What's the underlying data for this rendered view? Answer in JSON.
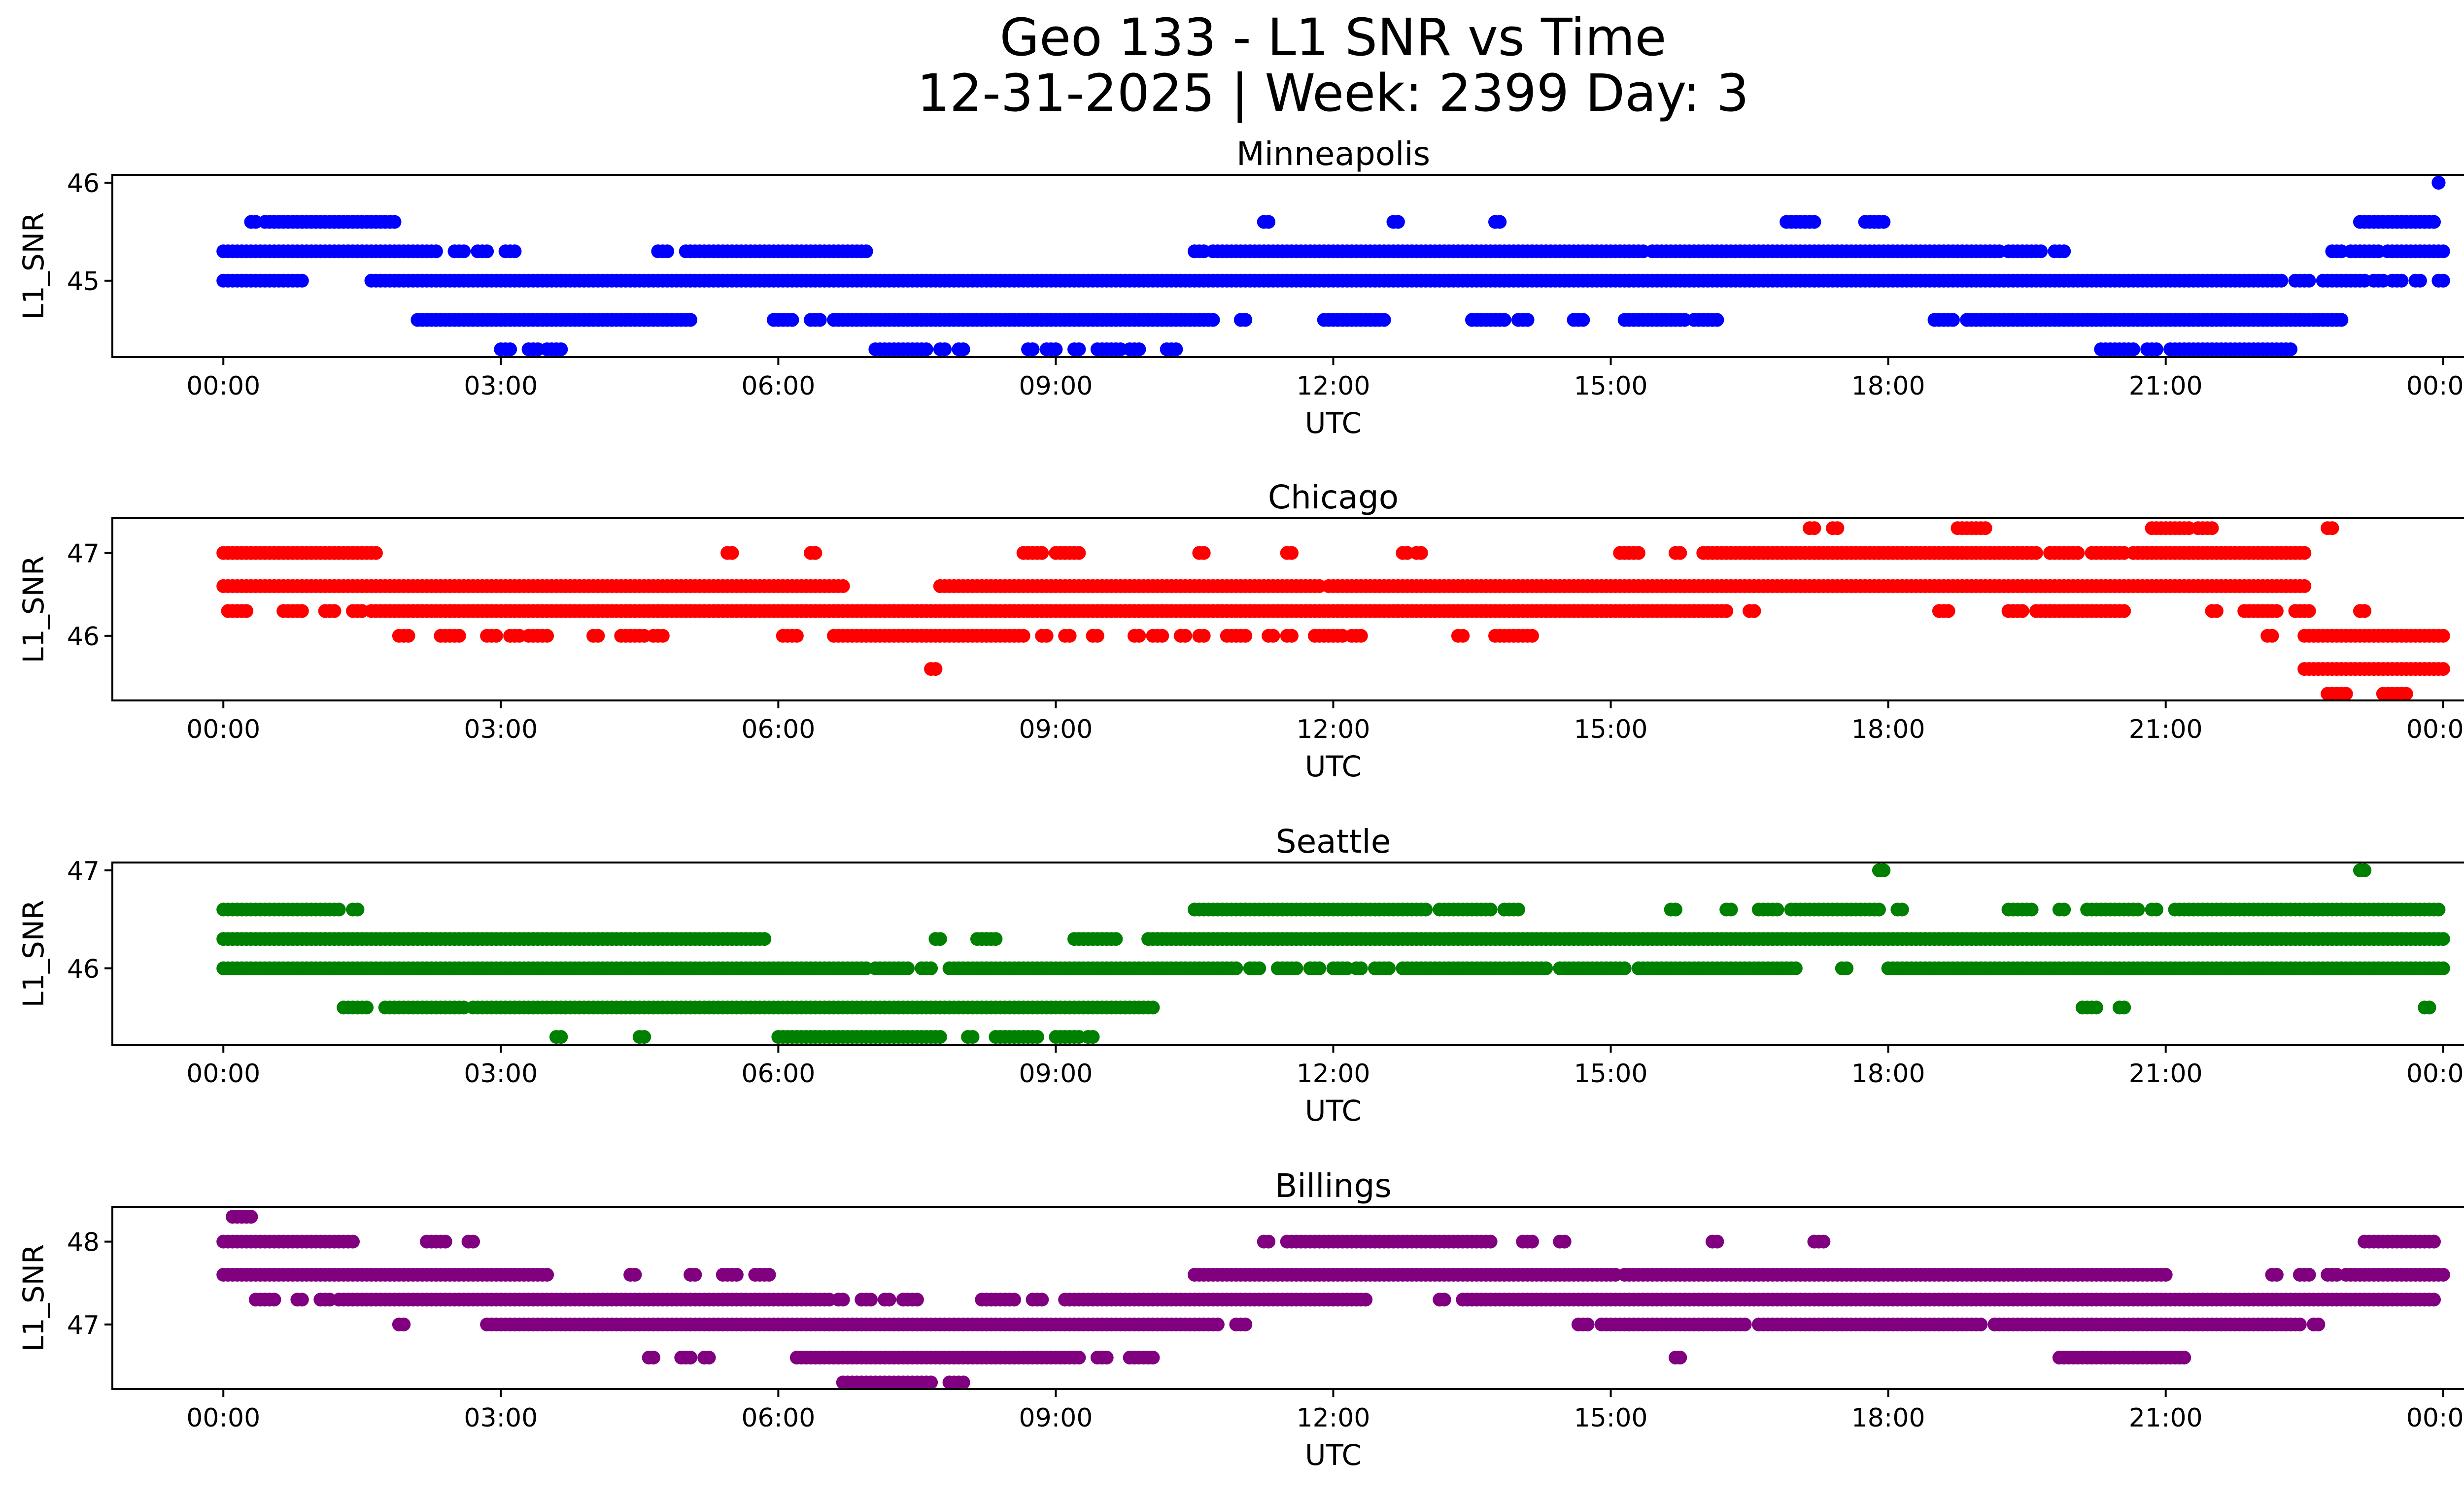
{
  "figure": {
    "title_line1": "Geo 133 - L1 SNR vs Time",
    "title_line2": "12-31-2025 | Week: 2399 Day: 3"
  },
  "chart_data": [
    {
      "type": "scatter",
      "title": "Minneapolis",
      "xlabel": "UTC",
      "ylabel": "L1_SNR",
      "color": "#0000ff",
      "x_ticks": [
        "00:00",
        "03:00",
        "06:00",
        "09:00",
        "12:00",
        "15:00",
        "18:00",
        "21:00",
        "00:00"
      ],
      "x_range_hours": [
        -1.2,
        25.2
      ],
      "y_ticks": [
        45,
        46
      ],
      "ylim": [
        44.22,
        46.08
      ],
      "grid": false,
      "levels": [
        {
          "y": 45.6,
          "segments": [
            [
              0.3,
              0.35
            ],
            [
              0.45,
              1.85
            ],
            [
              11.25,
              11.3
            ],
            [
              12.65,
              12.7
            ],
            [
              13.75,
              13.8
            ],
            [
              16.9,
              17.2
            ],
            [
              17.75,
              17.95
            ],
            [
              23.1,
              23.9
            ]
          ]
        },
        {
          "y": 45.3,
          "segments": [
            [
              0.0,
              2.3
            ],
            [
              2.5,
              2.6
            ],
            [
              2.75,
              2.85
            ],
            [
              3.05,
              3.15
            ],
            [
              4.7,
              4.8
            ],
            [
              5.0,
              6.95
            ],
            [
              10.5,
              10.6
            ],
            [
              10.7,
              15.35
            ],
            [
              15.45,
              19.2
            ],
            [
              19.3,
              19.65
            ],
            [
              19.8,
              19.9
            ],
            [
              22.8,
              22.9
            ],
            [
              23.0,
              23.3
            ],
            [
              23.4,
              24.0
            ]
          ]
        },
        {
          "y": 45.0,
          "segments": [
            [
              0.0,
              0.85
            ],
            [
              1.6,
              22.25
            ],
            [
              22.4,
              22.55
            ],
            [
              22.7,
              23.15
            ],
            [
              23.25,
              23.35
            ],
            [
              23.45,
              23.55
            ],
            [
              23.7,
              23.75
            ],
            [
              23.95,
              24.0
            ]
          ]
        },
        {
          "y": 44.6,
          "segments": [
            [
              2.1,
              5.05
            ],
            [
              5.95,
              6.15
            ],
            [
              6.35,
              6.45
            ],
            [
              6.6,
              10.7
            ],
            [
              11.0,
              11.05
            ],
            [
              11.9,
              12.55
            ],
            [
              13.5,
              13.85
            ],
            [
              14.0,
              14.1
            ],
            [
              14.6,
              14.7
            ],
            [
              15.15,
              15.8
            ],
            [
              15.9,
              16.15
            ],
            [
              18.5,
              18.7
            ],
            [
              18.85,
              22.9
            ]
          ]
        },
        {
          "y": 44.3,
          "segments": [
            [
              3.0,
              3.1
            ],
            [
              3.3,
              3.4
            ],
            [
              3.5,
              3.65
            ],
            [
              7.05,
              7.6
            ],
            [
              7.75,
              7.8
            ],
            [
              7.95,
              8.0
            ],
            [
              8.7,
              8.75
            ],
            [
              8.9,
              9.0
            ],
            [
              9.2,
              9.25
            ],
            [
              9.45,
              9.7
            ],
            [
              9.8,
              9.9
            ],
            [
              10.2,
              10.3
            ],
            [
              20.3,
              20.65
            ],
            [
              20.8,
              20.9
            ],
            [
              21.05,
              22.35
            ]
          ]
        },
        {
          "y": 46.0,
          "segments": [
            [
              23.95,
              23.95
            ]
          ]
        }
      ]
    },
    {
      "type": "scatter",
      "title": "Chicago",
      "xlabel": "UTC",
      "ylabel": "L1_SNR",
      "color": "#ff0000",
      "x_ticks": [
        "00:00",
        "03:00",
        "06:00",
        "09:00",
        "12:00",
        "15:00",
        "18:00",
        "21:00",
        "00:00"
      ],
      "x_range_hours": [
        -1.2,
        25.2
      ],
      "y_ticks": [
        46,
        47
      ],
      "ylim": [
        45.22,
        47.42
      ],
      "grid": false,
      "levels": [
        {
          "y": 47.3,
          "segments": [
            [
              17.15,
              17.2
            ],
            [
              17.4,
              17.45
            ],
            [
              18.75,
              19.05
            ],
            [
              20.85,
              21.25
            ],
            [
              21.35,
              21.5
            ],
            [
              22.75,
              22.8
            ]
          ]
        },
        {
          "y": 47.0,
          "segments": [
            [
              0.0,
              1.65
            ],
            [
              5.45,
              5.5
            ],
            [
              6.35,
              6.4
            ],
            [
              8.65,
              8.85
            ],
            [
              9.0,
              9.25
            ],
            [
              10.55,
              10.6
            ],
            [
              11.5,
              11.55
            ],
            [
              12.75,
              12.8
            ],
            [
              12.9,
              12.95
            ],
            [
              15.1,
              15.3
            ],
            [
              15.7,
              15.75
            ],
            [
              16.0,
              19.6
            ],
            [
              19.75,
              20.05
            ],
            [
              20.2,
              20.55
            ],
            [
              20.65,
              22.5
            ]
          ]
        },
        {
          "y": 46.6,
          "segments": [
            [
              0.0,
              6.7
            ],
            [
              7.75,
              11.85
            ],
            [
              11.95,
              22.5
            ]
          ]
        },
        {
          "y": 46.3,
          "segments": [
            [
              0.05,
              0.25
            ],
            [
              0.65,
              0.85
            ],
            [
              1.1,
              1.2
            ],
            [
              1.4,
              1.5
            ],
            [
              1.6,
              16.25
            ],
            [
              16.5,
              16.55
            ],
            [
              18.55,
              18.65
            ],
            [
              19.3,
              19.45
            ],
            [
              19.6,
              20.55
            ],
            [
              21.5,
              21.55
            ],
            [
              21.85,
              22.2
            ],
            [
              22.4,
              22.55
            ],
            [
              23.1,
              23.15
            ]
          ]
        },
        {
          "y": 46.0,
          "segments": [
            [
              1.9,
              2.0
            ],
            [
              2.35,
              2.55
            ],
            [
              2.85,
              2.95
            ],
            [
              3.1,
              3.2
            ],
            [
              3.3,
              3.5
            ],
            [
              4.0,
              4.05
            ],
            [
              4.3,
              4.55
            ],
            [
              4.65,
              4.75
            ],
            [
              6.05,
              6.2
            ],
            [
              6.6,
              8.65
            ],
            [
              8.85,
              8.9
            ],
            [
              9.1,
              9.15
            ],
            [
              9.4,
              9.45
            ],
            [
              9.85,
              9.9
            ],
            [
              10.05,
              10.15
            ],
            [
              10.35,
              10.4
            ],
            [
              10.55,
              10.6
            ],
            [
              10.85,
              11.05
            ],
            [
              11.3,
              11.35
            ],
            [
              11.5,
              11.55
            ],
            [
              11.8,
              12.1
            ],
            [
              12.2,
              12.3
            ],
            [
              13.35,
              13.4
            ],
            [
              13.75,
              14.15
            ],
            [
              22.1,
              22.15
            ],
            [
              22.5,
              24.0
            ]
          ]
        },
        {
          "y": 45.6,
          "segments": [
            [
              7.65,
              7.7
            ],
            [
              22.5,
              24.0
            ]
          ]
        },
        {
          "y": 45.3,
          "segments": [
            [
              22.75,
              22.95
            ],
            [
              23.35,
              23.6
            ]
          ]
        }
      ]
    },
    {
      "type": "scatter",
      "title": "Seattle",
      "xlabel": "UTC",
      "ylabel": "L1_SNR",
      "color": "#008000",
      "x_ticks": [
        "00:00",
        "03:00",
        "06:00",
        "09:00",
        "12:00",
        "15:00",
        "18:00",
        "21:00",
        "00:00"
      ],
      "x_range_hours": [
        -1.2,
        25.2
      ],
      "y_ticks": [
        46,
        47
      ],
      "ylim": [
        45.22,
        47.08
      ],
      "grid": false,
      "levels": [
        {
          "y": 47.0,
          "segments": [
            [
              17.9,
              17.95
            ],
            [
              23.1,
              23.15
            ]
          ]
        },
        {
          "y": 46.6,
          "segments": [
            [
              0.0,
              1.25
            ],
            [
              1.4,
              1.45
            ],
            [
              10.5,
              13.0
            ],
            [
              13.15,
              13.7
            ],
            [
              13.85,
              14.0
            ],
            [
              15.65,
              15.7
            ],
            [
              16.25,
              16.3
            ],
            [
              16.6,
              16.8
            ],
            [
              16.95,
              17.9
            ],
            [
              18.1,
              18.15
            ],
            [
              19.3,
              19.55
            ],
            [
              19.85,
              19.9
            ],
            [
              20.15,
              20.7
            ],
            [
              20.85,
              20.9
            ],
            [
              21.1,
              23.95
            ]
          ]
        },
        {
          "y": 46.3,
          "segments": [
            [
              0.0,
              5.85
            ],
            [
              7.7,
              7.75
            ],
            [
              8.15,
              8.35
            ],
            [
              9.2,
              9.65
            ],
            [
              10.0,
              24.0
            ]
          ]
        },
        {
          "y": 46.0,
          "segments": [
            [
              0.0,
              6.95
            ],
            [
              7.05,
              7.4
            ],
            [
              7.55,
              7.65
            ],
            [
              7.85,
              10.95
            ],
            [
              11.1,
              11.2
            ],
            [
              11.4,
              11.6
            ],
            [
              11.75,
              11.85
            ],
            [
              12.0,
              12.15
            ],
            [
              12.25,
              12.3
            ],
            [
              12.45,
              12.6
            ],
            [
              12.75,
              14.3
            ],
            [
              14.45,
              15.15
            ],
            [
              15.3,
              17.0
            ],
            [
              17.5,
              17.55
            ],
            [
              18.0,
              24.0
            ]
          ]
        },
        {
          "y": 45.6,
          "segments": [
            [
              1.3,
              1.55
            ],
            [
              1.75,
              2.6
            ],
            [
              2.7,
              10.05
            ],
            [
              20.1,
              20.25
            ],
            [
              20.5,
              20.55
            ],
            [
              23.8,
              23.85
            ]
          ]
        },
        {
          "y": 45.3,
          "segments": [
            [
              3.6,
              3.65
            ],
            [
              4.5,
              4.55
            ],
            [
              6.0,
              7.75
            ],
            [
              8.05,
              8.1
            ],
            [
              8.35,
              8.8
            ],
            [
              9.0,
              9.25
            ],
            [
              9.35,
              9.4
            ]
          ]
        }
      ]
    },
    {
      "type": "scatter",
      "title": "Billings",
      "xlabel": "UTC",
      "ylabel": "L1_SNR",
      "color": "#800080",
      "x_ticks": [
        "00:00",
        "03:00",
        "06:00",
        "09:00",
        "12:00",
        "15:00",
        "18:00",
        "21:00",
        "00:00"
      ],
      "x_range_hours": [
        -1.2,
        25.2
      ],
      "y_ticks": [
        47,
        48
      ],
      "ylim": [
        46.22,
        48.42
      ],
      "grid": false,
      "levels": [
        {
          "y": 48.3,
          "segments": [
            [
              0.1,
              0.3
            ]
          ]
        },
        {
          "y": 48.0,
          "segments": [
            [
              0.0,
              1.4
            ],
            [
              2.2,
              2.4
            ],
            [
              2.65,
              2.7
            ],
            [
              11.25,
              11.3
            ],
            [
              11.5,
              13.7
            ],
            [
              14.05,
              14.15
            ],
            [
              14.45,
              14.5
            ],
            [
              16.1,
              16.15
            ],
            [
              17.2,
              17.3
            ],
            [
              23.15,
              23.9
            ]
          ]
        },
        {
          "y": 47.6,
          "segments": [
            [
              0.0,
              3.5
            ],
            [
              4.4,
              4.45
            ],
            [
              5.05,
              5.1
            ],
            [
              5.4,
              5.55
            ],
            [
              5.75,
              5.9
            ],
            [
              10.5,
              15.05
            ],
            [
              15.15,
              21.0
            ],
            [
              22.15,
              22.2
            ],
            [
              22.45,
              22.55
            ],
            [
              22.75,
              22.85
            ],
            [
              22.95,
              24.0
            ]
          ]
        },
        {
          "y": 47.3,
          "segments": [
            [
              0.35,
              0.55
            ],
            [
              0.8,
              0.85
            ],
            [
              1.05,
              1.15
            ],
            [
              1.25,
              6.55
            ],
            [
              6.65,
              6.7
            ],
            [
              6.9,
              7.0
            ],
            [
              7.15,
              7.2
            ],
            [
              7.35,
              7.5
            ],
            [
              8.2,
              8.55
            ],
            [
              8.75,
              8.85
            ],
            [
              9.1,
              12.35
            ],
            [
              13.15,
              13.2
            ],
            [
              13.4,
              23.9
            ]
          ]
        },
        {
          "y": 47.0,
          "segments": [
            [
              1.9,
              1.95
            ],
            [
              2.85,
              10.75
            ],
            [
              10.95,
              11.05
            ],
            [
              14.65,
              14.75
            ],
            [
              14.9,
              16.45
            ],
            [
              16.6,
              19.0
            ],
            [
              19.15,
              22.45
            ],
            [
              22.6,
              22.65
            ]
          ]
        },
        {
          "y": 46.6,
          "segments": [
            [
              4.6,
              4.65
            ],
            [
              4.95,
              5.05
            ],
            [
              5.2,
              5.25
            ],
            [
              6.2,
              9.25
            ],
            [
              9.45,
              9.55
            ],
            [
              9.8,
              10.05
            ],
            [
              15.7,
              15.75
            ],
            [
              19.85,
              21.2
            ]
          ]
        },
        {
          "y": 46.3,
          "segments": [
            [
              6.7,
              7.65
            ],
            [
              7.85,
              8.0
            ]
          ]
        }
      ]
    }
  ]
}
